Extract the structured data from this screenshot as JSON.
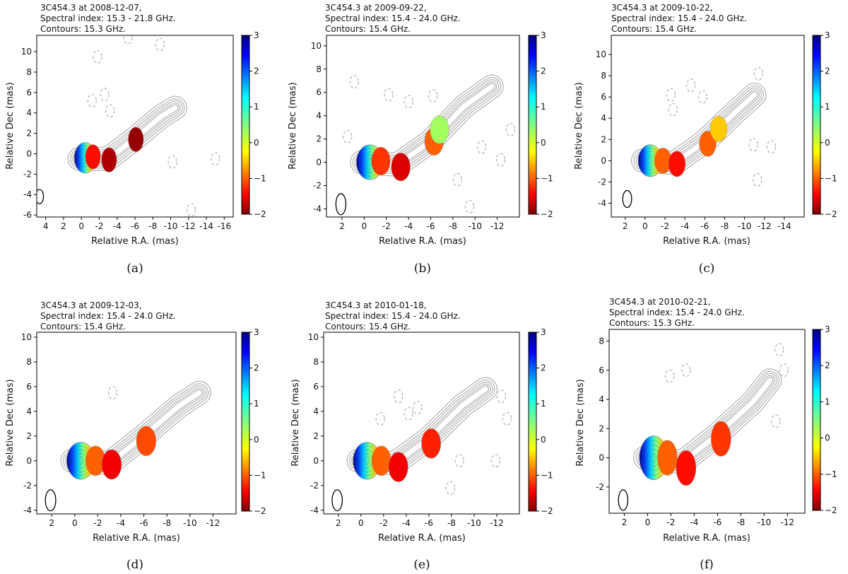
{
  "figure": {
    "panel_layout": "3 columns x 2 rows",
    "colormap": "jet (red = -2, dark blue = 3)",
    "contour_color": "#b0b0b0",
    "beam_color": "#000000"
  },
  "chart_data": [
    {
      "type": "heatmap",
      "panel": "(a)",
      "title_lines": [
        "3C454.3 at 2008-12-07,",
        "Spectral index: 15.3 - 21.8 GHz.",
        "Contours: 15.3 GHz."
      ],
      "xlabel": "Relative R.A. (mas)",
      "ylabel": "Relative Dec (mas)",
      "xlim": [
        5,
        -17
      ],
      "ylim": [
        -6.2,
        11.6
      ],
      "xticks": [
        4,
        2,
        0,
        -2,
        -4,
        -6,
        -8,
        -10,
        -12,
        -14,
        -16
      ],
      "xtick_labels": [
        "4",
        "2",
        "0",
        "-2",
        "-4",
        "-6",
        "-8",
        "-10",
        "-12",
        "-14",
        "-16"
      ],
      "yticks": [
        -6,
        -4,
        -2,
        0,
        2,
        4,
        6,
        8,
        10
      ],
      "ytick_labels": [
        "-6",
        "-4",
        "-2",
        "0",
        "2",
        "4",
        "6",
        "8",
        "10"
      ],
      "colorbar": {
        "min": -2,
        "max": 3,
        "ticks": [
          3,
          2,
          1,
          0,
          -1,
          -2
        ],
        "tick_labels": [
          "3",
          "2",
          "1",
          "0",
          "−1",
          "−2"
        ]
      },
      "beam": {
        "x": 4.7,
        "y": -4.2,
        "rx": 0.45,
        "ry": 0.7
      },
      "components": [
        {
          "x": -0.1,
          "y": -0.4,
          "spectral_index": 1.5,
          "kind": "core"
        },
        {
          "x": -1.3,
          "y": -0.3,
          "spectral_index": -1.4
        },
        {
          "x": -3.1,
          "y": -0.6,
          "spectral_index": -1.8
        },
        {
          "x": -6.1,
          "y": 1.4,
          "spectral_index": -1.9
        }
      ],
      "jet_path": [
        [
          0.2,
          -0.5
        ],
        [
          -3,
          -0.5
        ],
        [
          -6,
          1.5
        ],
        [
          -9,
          3.7
        ],
        [
          -10.5,
          4.5
        ]
      ],
      "dashed_contours": [
        [
          -1.2,
          5.2
        ],
        [
          -2.6,
          5.8
        ],
        [
          -3.2,
          4.2
        ],
        [
          -1.8,
          9.5
        ],
        [
          -5.2,
          11.4
        ],
        [
          -8.8,
          10.7
        ],
        [
          -10.2,
          -0.8
        ],
        [
          -12.3,
          -5.5
        ],
        [
          -15,
          -0.5
        ]
      ]
    },
    {
      "type": "heatmap",
      "panel": "(b)",
      "title_lines": [
        "3C454.3 at 2009-09-22,",
        "Spectral index: 15.4 - 24.0 GHz.",
        "Contours: 15.4 GHz."
      ],
      "xlabel": "Relative R.A. (mas)",
      "ylabel": "Relative Dec (mas)",
      "xlim": [
        3.4,
        -14
      ],
      "ylim": [
        -4.7,
        10.9
      ],
      "xticks": [
        2,
        0,
        -2,
        -4,
        -6,
        -8,
        -10,
        -12
      ],
      "xtick_labels": [
        "2",
        "0",
        "-2",
        "-4",
        "-6",
        "-8",
        "-10",
        "-12"
      ],
      "yticks": [
        -4,
        -2,
        0,
        2,
        4,
        6,
        8,
        10
      ],
      "ytick_labels": [
        "-4",
        "-2",
        "0",
        "2",
        "4",
        "6",
        "8",
        "10"
      ],
      "colorbar": {
        "min": -2,
        "max": 3,
        "ticks": [
          3,
          2,
          1,
          0,
          -1,
          -2
        ],
        "tick_labels": [
          "3",
          "2",
          "1",
          "0",
          "−1",
          "−2"
        ]
      },
      "beam": {
        "x": 2.1,
        "y": -3.6,
        "rx": 0.45,
        "ry": 0.9
      },
      "components": [
        {
          "x": -0.2,
          "y": 0.0,
          "spectral_index": 1.6,
          "kind": "core"
        },
        {
          "x": -1.5,
          "y": 0.1,
          "spectral_index": -1.2
        },
        {
          "x": -3.3,
          "y": -0.4,
          "spectral_index": -1.6
        },
        {
          "x": -6.3,
          "y": 1.8,
          "spectral_index": -1.0
        },
        {
          "x": -6.8,
          "y": 2.8,
          "spectral_index": 0.3
        }
      ],
      "jet_path": [
        [
          0.2,
          0
        ],
        [
          -3,
          -0.2
        ],
        [
          -6,
          1.8
        ],
        [
          -9,
          4.8
        ],
        [
          -11.5,
          6.5
        ]
      ],
      "dashed_contours": [
        [
          -2.2,
          5.8
        ],
        [
          -4,
          5.2
        ],
        [
          -6.2,
          5.7
        ],
        [
          -8.4,
          -1.5
        ],
        [
          -9.5,
          -3.8
        ],
        [
          -10.6,
          1.3
        ],
        [
          -12.3,
          0.2
        ],
        [
          -13.2,
          2.8
        ],
        [
          1.5,
          2.2
        ],
        [
          0.9,
          6.9
        ]
      ]
    },
    {
      "type": "heatmap",
      "panel": "(c)",
      "title_lines": [
        "3C454.3 at 2009-10-22,",
        "Spectral index: 15.4 - 24.0 GHz.",
        "Contours: 15.4 GHz."
      ],
      "xlabel": "Relative R.A. (mas)",
      "ylabel": "Relative Dec (mas)",
      "xlim": [
        3.4,
        -16
      ],
      "ylim": [
        -5.3,
        11.8
      ],
      "xticks": [
        2,
        0,
        -2,
        -4,
        -6,
        -8,
        -10,
        -12,
        -14
      ],
      "xtick_labels": [
        "2",
        "0",
        "-2",
        "-4",
        "-6",
        "-8",
        "-10",
        "-12",
        "-14"
      ],
      "yticks": [
        -4,
        -2,
        0,
        2,
        4,
        6,
        8,
        10
      ],
      "ytick_labels": [
        "-4",
        "-2",
        "0",
        "2",
        "4",
        "6",
        "8",
        "10"
      ],
      "colorbar": {
        "min": -2,
        "max": 3,
        "ticks": [
          3,
          2,
          1,
          0,
          -1,
          -2
        ],
        "tick_labels": [
          "3",
          "2",
          "1",
          "0",
          "−1",
          "−2"
        ]
      },
      "beam": {
        "x": 1.8,
        "y": -3.6,
        "rx": 0.45,
        "ry": 0.8
      },
      "components": [
        {
          "x": -0.2,
          "y": 0.0,
          "spectral_index": 1.6,
          "kind": "core"
        },
        {
          "x": -1.8,
          "y": 0.0,
          "spectral_index": -1.0
        },
        {
          "x": -3.2,
          "y": -0.3,
          "spectral_index": -1.4
        },
        {
          "x": -6.3,
          "y": 1.6,
          "spectral_index": -1.0
        },
        {
          "x": -7.4,
          "y": 3.0,
          "spectral_index": -0.5
        }
      ],
      "jet_path": [
        [
          0.2,
          0
        ],
        [
          -3,
          -0.2
        ],
        [
          -6,
          1.8
        ],
        [
          -9,
          4.5
        ],
        [
          -11,
          6.2
        ]
      ],
      "dashed_contours": [
        [
          -2.6,
          6.2
        ],
        [
          -2.8,
          4.8
        ],
        [
          -4.6,
          7.1
        ],
        [
          -5.8,
          6
        ],
        [
          -10.9,
          1.5
        ],
        [
          -11.3,
          -1.8
        ],
        [
          -12.7,
          1.3
        ],
        [
          -11.4,
          8.2
        ]
      ]
    },
    {
      "type": "heatmap",
      "panel": "(d)",
      "title_lines": [
        "3C454.3 at 2009-12-03,",
        "Spectral index: 15.4 - 24.0 GHz.",
        "Contours: 15.4 GHz."
      ],
      "xlabel": "Relative R.A. (mas)",
      "ylabel": "Relative Dec (mas)",
      "xlim": [
        3.3,
        -14
      ],
      "ylim": [
        -4.3,
        10.4
      ],
      "xticks": [
        2,
        0,
        -2,
        -4,
        -6,
        -8,
        -10,
        -12
      ],
      "xtick_labels": [
        "2",
        "0",
        "-2",
        "-4",
        "-6",
        "-8",
        "-10",
        "-12"
      ],
      "yticks": [
        -4,
        -2,
        0,
        2,
        4,
        6,
        8,
        10
      ],
      "ytick_labels": [
        "-4",
        "-2",
        "0",
        "2",
        "4",
        "6",
        "8",
        "10"
      ],
      "colorbar": {
        "min": -2,
        "max": 3,
        "ticks": [
          3,
          2,
          1,
          0,
          -1,
          -2
        ],
        "tick_labels": [
          "3",
          "2",
          "1",
          "0",
          "−1",
          "−2"
        ]
      },
      "beam": {
        "x": 2.1,
        "y": -3.2,
        "rx": 0.45,
        "ry": 0.85
      },
      "components": [
        {
          "x": -0.2,
          "y": 0.0,
          "spectral_index": 1.5,
          "kind": "core"
        },
        {
          "x": -1.8,
          "y": 0.0,
          "spectral_index": -1.0
        },
        {
          "x": -3.2,
          "y": -0.3,
          "spectral_index": -1.5
        },
        {
          "x": -6.2,
          "y": 1.6,
          "spectral_index": -1.1
        }
      ],
      "jet_path": [
        [
          0.2,
          0
        ],
        [
          -3,
          -0.2
        ],
        [
          -6,
          2
        ],
        [
          -9,
          4.4
        ],
        [
          -10.8,
          5.5
        ]
      ],
      "dashed_contours": [
        [
          -3.3,
          5.5
        ]
      ]
    },
    {
      "type": "heatmap",
      "panel": "(e)",
      "title_lines": [
        "3C454.3 at 2010-01-18,",
        "Spectral index: 15.4 - 24.0 GHz.",
        "Contours: 15.4 GHz."
      ],
      "xlabel": "Relative R.A. (mas)",
      "ylabel": "Relative Dec (mas)",
      "xlim": [
        3.3,
        -14
      ],
      "ylim": [
        -4.3,
        10.4
      ],
      "xticks": [
        2,
        0,
        -2,
        -4,
        -6,
        -8,
        -10,
        -12
      ],
      "xtick_labels": [
        "2",
        "0",
        "-2",
        "-4",
        "-6",
        "-8",
        "-10",
        "-12"
      ],
      "yticks": [
        -4,
        -2,
        0,
        2,
        4,
        6,
        8,
        10
      ],
      "ytick_labels": [
        "-4",
        "-2",
        "0",
        "2",
        "4",
        "6",
        "8",
        "10"
      ],
      "colorbar": {
        "min": -2,
        "max": 3,
        "ticks": [
          3,
          2,
          1,
          0,
          -1,
          -2
        ],
        "tick_labels": [
          "3",
          "2",
          "1",
          "0",
          "−1",
          "−2"
        ]
      },
      "beam": {
        "x": 2.1,
        "y": -3.2,
        "rx": 0.45,
        "ry": 0.85
      },
      "components": [
        {
          "x": -0.2,
          "y": 0.0,
          "spectral_index": 1.5,
          "kind": "core"
        },
        {
          "x": -1.8,
          "y": 0.0,
          "spectral_index": -1.0
        },
        {
          "x": -3.3,
          "y": -0.5,
          "spectral_index": -1.5
        },
        {
          "x": -6.2,
          "y": 1.4,
          "spectral_index": -1.3
        }
      ],
      "jet_path": [
        [
          0.2,
          0
        ],
        [
          -3,
          -0.2
        ],
        [
          -6,
          1.8
        ],
        [
          -9,
          4.5
        ],
        [
          -11,
          5.8
        ]
      ],
      "dashed_contours": [
        [
          -1.7,
          3.4
        ],
        [
          -3.3,
          5.2
        ],
        [
          -4.2,
          3.8
        ],
        [
          -5,
          4.3
        ],
        [
          -8.7,
          0
        ],
        [
          -7.9,
          -2.2
        ],
        [
          -11.9,
          0
        ],
        [
          -12.9,
          3.4
        ],
        [
          -12.4,
          5.2
        ]
      ]
    },
    {
      "type": "heatmap",
      "panel": "(f)",
      "title_lines": [
        "3C454.3 at 2010-02-21,",
        "Spectral index: 15.4 - 24.0 GHz.",
        "Contours: 15.3 GHz."
      ],
      "xlabel": "Relative R.A. (mas)",
      "ylabel": "Relative Dec (mas)",
      "xlim": [
        3.3,
        -13.5
      ],
      "ylim": [
        -3.8,
        8.8
      ],
      "xticks": [
        2,
        0,
        -2,
        -4,
        -6,
        -8,
        -10,
        -12
      ],
      "xtick_labels": [
        "2",
        "0",
        "-2",
        "-4",
        "-6",
        "-8",
        "-10",
        "-12"
      ],
      "yticks": [
        -2,
        0,
        2,
        4,
        6,
        8
      ],
      "ytick_labels": [
        "-2",
        "0",
        "2",
        "4",
        "6",
        "8"
      ],
      "colorbar": {
        "min": -2,
        "max": 3,
        "ticks": [
          3,
          2,
          1,
          0,
          -1,
          -2
        ],
        "tick_labels": [
          "3",
          "2",
          "1",
          "0",
          "−1",
          "−2"
        ]
      },
      "beam": {
        "x": 2.1,
        "y": -2.9,
        "rx": 0.4,
        "ry": 0.7
      },
      "components": [
        {
          "x": -0.2,
          "y": 0.0,
          "spectral_index": 2.0,
          "kind": "core"
        },
        {
          "x": -1.7,
          "y": 0.0,
          "spectral_index": -1.0
        },
        {
          "x": -3.3,
          "y": -0.7,
          "spectral_index": -1.4
        },
        {
          "x": -6.3,
          "y": 1.3,
          "spectral_index": -1.2
        }
      ],
      "jet_path": [
        [
          0.2,
          0
        ],
        [
          -3,
          -0.3
        ],
        [
          -6,
          1.6
        ],
        [
          -9,
          3.8
        ],
        [
          -10.5,
          5.3
        ]
      ],
      "dashed_contours": [
        [
          -3.3,
          6
        ],
        [
          -1.9,
          5.6
        ],
        [
          -11.3,
          7.4
        ],
        [
          -11.7,
          6
        ],
        [
          -11,
          2.5
        ]
      ]
    }
  ]
}
